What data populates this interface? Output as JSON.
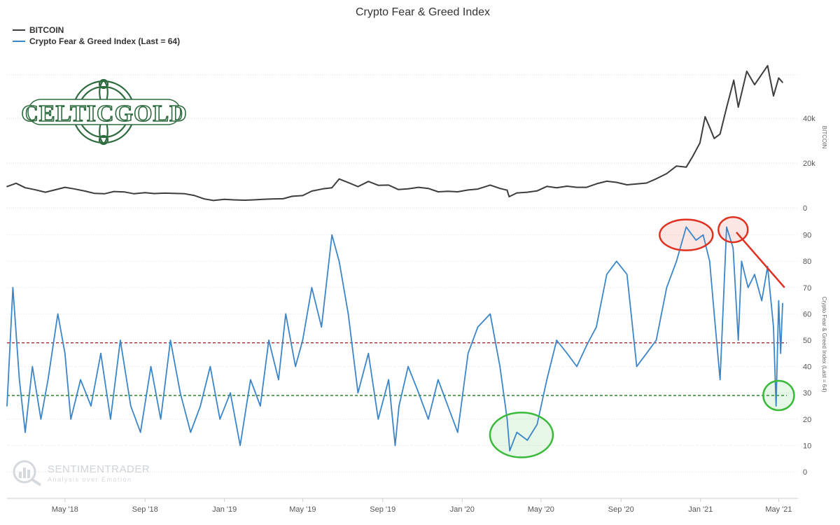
{
  "chart_data": {
    "type": "line",
    "title": "Crypto Fear & Greed Index",
    "legend_placement": "top-left",
    "grid": true,
    "series": [
      {
        "name": "BITCOIN",
        "color": "#3d3d3d",
        "panel": "top",
        "x": [
          "2018-02-01",
          "2018-02-15",
          "2018-03-01",
          "2018-03-15",
          "2018-04-01",
          "2018-04-15",
          "2018-05-01",
          "2018-05-15",
          "2018-06-01",
          "2018-06-15",
          "2018-07-01",
          "2018-07-15",
          "2018-08-01",
          "2018-08-15",
          "2018-09-01",
          "2018-09-15",
          "2018-10-01",
          "2018-10-15",
          "2018-11-01",
          "2018-11-15",
          "2018-12-01",
          "2018-12-15",
          "2019-01-01",
          "2019-01-15",
          "2019-02-01",
          "2019-02-15",
          "2019-03-01",
          "2019-03-15",
          "2019-04-01",
          "2019-04-15",
          "2019-05-01",
          "2019-05-15",
          "2019-06-01",
          "2019-06-15",
          "2019-06-26",
          "2019-07-10",
          "2019-07-25",
          "2019-08-10",
          "2019-08-25",
          "2019-09-10",
          "2019-09-25",
          "2019-10-10",
          "2019-10-26",
          "2019-11-10",
          "2019-11-25",
          "2019-12-10",
          "2019-12-25",
          "2020-01-10",
          "2020-01-25",
          "2020-02-13",
          "2020-02-28",
          "2020-03-10",
          "2020-03-13",
          "2020-03-25",
          "2020-04-10",
          "2020-04-25",
          "2020-05-10",
          "2020-05-25",
          "2020-06-10",
          "2020-06-25",
          "2020-07-10",
          "2020-07-27",
          "2020-08-10",
          "2020-08-25",
          "2020-09-10",
          "2020-09-25",
          "2020-10-10",
          "2020-10-25",
          "2020-11-10",
          "2020-11-25",
          "2020-12-10",
          "2020-12-20",
          "2020-12-31",
          "2021-01-08",
          "2021-01-15",
          "2021-01-22",
          "2021-01-31",
          "2021-02-10",
          "2021-02-21",
          "2021-02-28",
          "2021-03-13",
          "2021-03-25",
          "2021-04-14",
          "2021-04-23",
          "2021-05-01",
          "2021-05-07"
        ],
        "values": [
          9500,
          11000,
          9000,
          8200,
          7000,
          8000,
          9200,
          8500,
          7500,
          6500,
          6300,
          7300,
          7100,
          6300,
          6800,
          6400,
          6600,
          6500,
          6300,
          5600,
          4000,
          3300,
          3800,
          3600,
          3450,
          3600,
          3800,
          4000,
          4100,
          5200,
          5500,
          7500,
          8500,
          9000,
          12900,
          11300,
          9500,
          11800,
          10100,
          10200,
          8200,
          8500,
          9200,
          8700,
          7200,
          7400,
          7200,
          8000,
          8400,
          10200,
          8700,
          7900,
          5000,
          6700,
          7000,
          7600,
          9600,
          9000,
          9700,
          9200,
          9200,
          10900,
          11900,
          11400,
          10300,
          10700,
          11100,
          13000,
          15300,
          18700,
          18200,
          23000,
          29000,
          40700,
          36000,
          31000,
          33000,
          44800,
          57000,
          45000,
          61000,
          55000,
          63500,
          50000,
          58000,
          56000
        ]
      },
      {
        "name": "Crypto Fear & Greed Index (Last = 64)",
        "color": "#3a86c8",
        "panel": "bottom",
        "x": [
          "2018-02-01",
          "2018-02-10",
          "2018-02-20",
          "2018-03-01",
          "2018-03-12",
          "2018-03-25",
          "2018-04-05",
          "2018-04-20",
          "2018-05-01",
          "2018-05-10",
          "2018-05-25",
          "2018-06-10",
          "2018-06-25",
          "2018-07-10",
          "2018-07-25",
          "2018-08-10",
          "2018-08-25",
          "2018-09-10",
          "2018-09-25",
          "2018-10-10",
          "2018-10-25",
          "2018-11-10",
          "2018-11-25",
          "2018-12-10",
          "2018-12-25",
          "2019-01-10",
          "2019-01-25",
          "2019-02-10",
          "2019-02-25",
          "2019-03-10",
          "2019-03-25",
          "2019-04-05",
          "2019-04-20",
          "2019-05-01",
          "2019-05-15",
          "2019-05-30",
          "2019-06-15",
          "2019-06-26",
          "2019-07-10",
          "2019-07-25",
          "2019-08-10",
          "2019-08-25",
          "2019-09-10",
          "2019-09-20",
          "2019-09-26",
          "2019-10-10",
          "2019-10-26",
          "2019-11-10",
          "2019-11-25",
          "2019-12-10",
          "2019-12-25",
          "2020-01-10",
          "2020-01-25",
          "2020-02-13",
          "2020-02-28",
          "2020-03-10",
          "2020-03-14",
          "2020-03-25",
          "2020-04-10",
          "2020-04-25",
          "2020-05-10",
          "2020-05-25",
          "2020-06-10",
          "2020-06-25",
          "2020-07-10",
          "2020-07-25",
          "2020-08-10",
          "2020-08-25",
          "2020-09-10",
          "2020-09-25",
          "2020-10-10",
          "2020-10-25",
          "2020-11-10",
          "2020-11-25",
          "2020-12-10",
          "2020-12-25",
          "2021-01-05",
          "2021-01-15",
          "2021-01-22",
          "2021-01-31",
          "2021-02-10",
          "2021-02-20",
          "2021-02-28",
          "2021-03-05",
          "2021-03-15",
          "2021-03-25",
          "2021-04-05",
          "2021-04-14",
          "2021-04-23",
          "2021-04-27",
          "2021-05-01",
          "2021-05-04",
          "2021-05-07"
        ],
        "values": [
          25,
          70,
          35,
          15,
          40,
          20,
          35,
          60,
          45,
          20,
          35,
          25,
          45,
          20,
          50,
          25,
          15,
          40,
          20,
          50,
          30,
          15,
          25,
          40,
          20,
          30,
          10,
          35,
          25,
          50,
          35,
          60,
          40,
          50,
          70,
          55,
          90,
          80,
          60,
          30,
          45,
          20,
          35,
          10,
          25,
          40,
          30,
          20,
          35,
          25,
          15,
          45,
          55,
          60,
          40,
          20,
          8,
          15,
          12,
          18,
          35,
          50,
          45,
          40,
          48,
          55,
          75,
          80,
          75,
          40,
          45,
          50,
          70,
          80,
          93,
          88,
          90,
          80,
          60,
          35,
          93,
          85,
          50,
          80,
          70,
          75,
          65,
          78,
          55,
          25,
          65,
          45,
          64
        ]
      }
    ],
    "axes": {
      "x": {
        "ticks": [
          "May '18",
          "Sep '18",
          "Jan '19",
          "May '19",
          "Sep '19",
          "Jan '20",
          "May '20",
          "Sep '20",
          "Jan '21",
          "May '21"
        ],
        "tick_dates": [
          "2018-05-01",
          "2018-09-01",
          "2019-01-01",
          "2019-05-01",
          "2019-09-01",
          "2020-01-01",
          "2020-05-01",
          "2020-09-01",
          "2021-01-01",
          "2021-05-01"
        ],
        "range": [
          "2018-02-01",
          "2021-05-07"
        ]
      },
      "y_top": {
        "label": "BITCOIN",
        "ticks": [
          "0",
          "20k",
          "40k"
        ],
        "tick_values": [
          0,
          20000,
          40000
        ],
        "range": [
          0,
          60000
        ]
      },
      "y_bottom": {
        "label": "Crypto Fear & Greed Index (Last = 64)",
        "ticks": [
          "0",
          "10",
          "20",
          "30",
          "40",
          "50",
          "60",
          "70",
          "80",
          "90"
        ],
        "tick_values": [
          0,
          10,
          20,
          30,
          40,
          50,
          60,
          70,
          80,
          90
        ],
        "range": [
          0,
          100
        ]
      }
    },
    "reference_lines": [
      {
        "value": 49,
        "color": "#a01a1a",
        "style": "dashed"
      },
      {
        "value": 29,
        "color": "#1a7a1a",
        "style": "dashed"
      }
    ],
    "annotations": [
      {
        "type": "ellipse",
        "date": "2020-12-10",
        "value": 90,
        "color": "#e03020"
      },
      {
        "type": "ellipse",
        "date": "2021-02-20",
        "value": 92,
        "color": "#e03020"
      },
      {
        "type": "ellipse",
        "date": "2020-04-01",
        "value": 14,
        "color": "#3aba3a"
      },
      {
        "type": "ellipse",
        "date": "2021-05-01",
        "value": 29,
        "color": "#3aba3a"
      },
      {
        "type": "arrow",
        "from_date": "2021-02-25",
        "from_value": 91,
        "to_date": "2021-05-10",
        "to_value": 70,
        "color": "#e03020"
      }
    ]
  },
  "logo": {
    "text": "CELTICGOLD"
  },
  "watermark": {
    "name": "SENTIMENTRADER",
    "tagline": "Analysis over Emotion"
  }
}
